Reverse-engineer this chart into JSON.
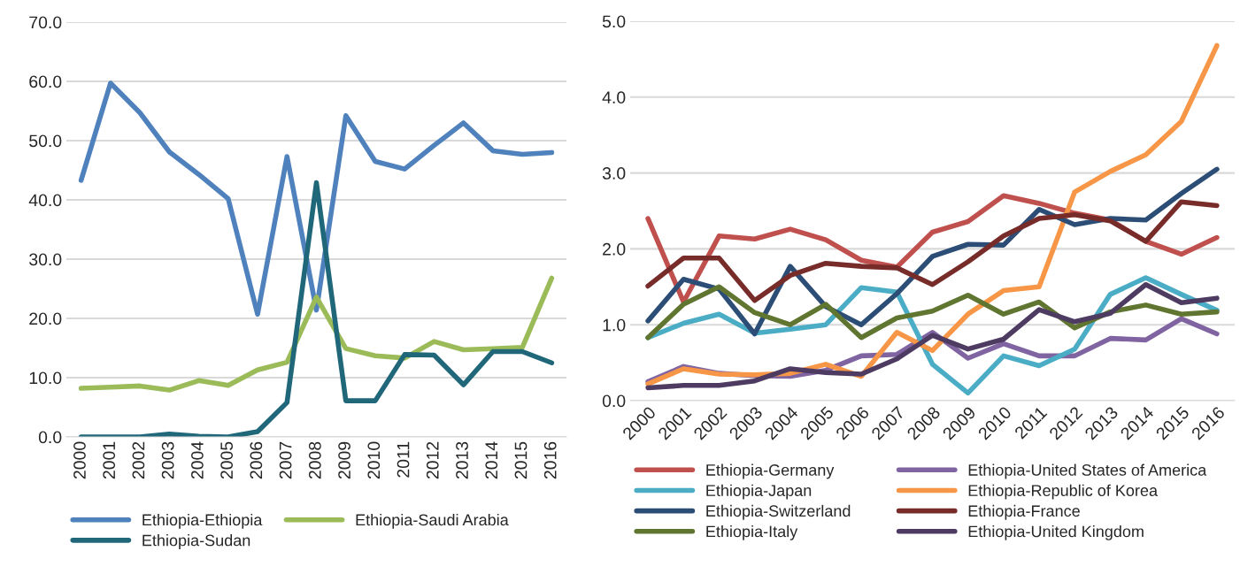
{
  "chart_data": [
    {
      "type": "line",
      "categories": [
        "2000",
        "2001",
        "2002",
        "2003",
        "2004",
        "2005",
        "2006",
        "2007",
        "2008",
        "2009",
        "2010",
        "2011",
        "2012",
        "2013",
        "2014",
        "2015",
        "2016"
      ],
      "series": [
        {
          "name": "Ethiopia-Ethiopia",
          "color": "#4f81bd",
          "values": [
            43.3,
            59.7,
            54.7,
            48.1,
            44.3,
            40.2,
            20.7,
            47.3,
            21.4,
            54.2,
            46.5,
            45.2,
            49.2,
            53.0,
            48.3,
            47.7,
            48.0
          ]
        },
        {
          "name": "Ethiopia-Saudi Arabia",
          "color": "#9bbb59",
          "values": [
            8.2,
            8.4,
            8.6,
            7.9,
            9.5,
            8.7,
            11.3,
            12.6,
            23.6,
            14.9,
            13.7,
            13.3,
            16.1,
            14.7,
            14.9,
            15.1,
            26.8
          ]
        },
        {
          "name": "Ethiopia-Sudan",
          "color": "#21677a",
          "values": [
            0.0,
            0.0,
            0.0,
            0.5,
            0.1,
            0.0,
            0.9,
            5.8,
            42.9,
            6.1,
            6.1,
            13.9,
            13.8,
            8.8,
            14.4,
            14.4,
            12.5
          ]
        }
      ],
      "ylim": [
        0,
        70
      ],
      "yticks": [
        {
          "value": 0,
          "label": "0.0"
        },
        {
          "value": 10,
          "label": "10.0"
        },
        {
          "value": 20,
          "label": "20.0"
        },
        {
          "value": 30,
          "label": "30.0"
        },
        {
          "value": 40,
          "label": "40.0"
        },
        {
          "value": 50,
          "label": "50.0"
        },
        {
          "value": 60,
          "label": "60.0"
        },
        {
          "value": 70,
          "label": "70.0"
        }
      ],
      "grid": "y",
      "legend": "bottom",
      "marker": "none",
      "line_style": "solid"
    },
    {
      "type": "line",
      "categories": [
        "2000",
        "2001",
        "2002",
        "2003",
        "2004",
        "2005",
        "2006",
        "2007",
        "2008",
        "2009",
        "2010",
        "2011",
        "2012",
        "2013",
        "2014",
        "2015",
        "2016"
      ],
      "series": [
        {
          "name": "Ethiopia-Germany",
          "color": "#c0504d",
          "values": [
            2.4,
            1.3,
            2.17,
            2.13,
            2.26,
            2.12,
            1.85,
            1.76,
            2.22,
            2.36,
            2.7,
            2.6,
            2.47,
            2.38,
            2.1,
            1.93,
            2.15
          ]
        },
        {
          "name": "Ethiopia-United States of America",
          "color": "#8064a2",
          "values": [
            0.25,
            0.45,
            0.36,
            0.33,
            0.32,
            0.4,
            0.59,
            0.61,
            0.9,
            0.56,
            0.75,
            0.59,
            0.59,
            0.82,
            0.8,
            1.08,
            0.88
          ]
        },
        {
          "name": "Ethiopia-Japan",
          "color": "#4bacc6",
          "values": [
            0.83,
            1.02,
            1.14,
            0.89,
            0.94,
            1.0,
            1.49,
            1.43,
            0.48,
            0.1,
            0.59,
            0.46,
            0.68,
            1.4,
            1.62,
            1.4,
            1.19
          ]
        },
        {
          "name": "Ethiopia-Republic of Korea",
          "color": "#f79646",
          "values": [
            0.22,
            0.42,
            0.35,
            0.34,
            0.36,
            0.48,
            0.32,
            0.9,
            0.66,
            1.14,
            1.45,
            1.5,
            2.75,
            3.02,
            3.24,
            3.68,
            4.68
          ]
        },
        {
          "name": "Ethiopia-Switzerland",
          "color": "#2c4d75",
          "values": [
            1.05,
            1.6,
            1.47,
            0.88,
            1.77,
            1.24,
            1.0,
            1.41,
            1.9,
            2.06,
            2.05,
            2.52,
            2.32,
            2.4,
            2.38,
            2.73,
            3.05
          ]
        },
        {
          "name": "Ethiopia-France",
          "color": "#772c2a",
          "values": [
            1.51,
            1.88,
            1.88,
            1.32,
            1.65,
            1.81,
            1.77,
            1.75,
            1.53,
            1.83,
            2.17,
            2.4,
            2.45,
            2.37,
            2.1,
            2.62,
            2.57
          ]
        },
        {
          "name": "Ethiopia-Italy",
          "color": "#5f7530",
          "values": [
            0.83,
            1.27,
            1.5,
            1.16,
            1.0,
            1.27,
            0.83,
            1.09,
            1.18,
            1.39,
            1.14,
            1.3,
            0.96,
            1.17,
            1.26,
            1.14,
            1.17
          ]
        },
        {
          "name": "Ethiopia-United Kingdom",
          "color": "#4d3b62",
          "values": [
            0.17,
            0.2,
            0.2,
            0.26,
            0.42,
            0.37,
            0.35,
            0.55,
            0.86,
            0.68,
            0.81,
            1.2,
            1.04,
            1.15,
            1.53,
            1.29,
            1.35
          ]
        }
      ],
      "ylim": [
        0,
        5
      ],
      "yticks": [
        {
          "value": 0,
          "label": "0.0"
        },
        {
          "value": 1,
          "label": "1.0"
        },
        {
          "value": 2,
          "label": "2.0"
        },
        {
          "value": 3,
          "label": "3.0"
        },
        {
          "value": 4,
          "label": "4.0"
        },
        {
          "value": 5,
          "label": "5.0"
        }
      ],
      "grid": "y",
      "legend": "bottom",
      "marker": "none",
      "line_style": "solid"
    }
  ]
}
